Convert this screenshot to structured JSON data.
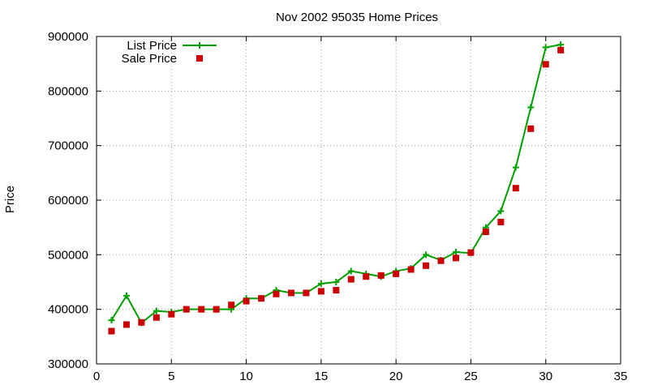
{
  "chart_data": {
    "type": "scatter",
    "title": "Nov 2002 95035 Home Prices",
    "xlabel": "",
    "ylabel": "Price",
    "xlim": [
      0,
      35
    ],
    "ylim": [
      300000,
      900000
    ],
    "xticks": [
      0,
      5,
      10,
      15,
      20,
      25,
      30,
      35
    ],
    "yticks": [
      300000,
      400000,
      500000,
      600000,
      700000,
      800000,
      900000
    ],
    "grid": true,
    "legend_position": "top-left",
    "series": [
      {
        "name": "List Price",
        "style": "line-with-plus-markers",
        "color": "#00a000",
        "x": [
          1,
          2,
          3,
          4,
          5,
          6,
          7,
          8,
          9,
          10,
          11,
          12,
          13,
          14,
          15,
          16,
          17,
          18,
          19,
          20,
          21,
          22,
          23,
          24,
          25,
          26,
          27,
          28,
          29,
          30,
          31
        ],
        "y": [
          380000,
          425000,
          375000,
          397000,
          395000,
          400000,
          400000,
          400000,
          400000,
          420000,
          420000,
          435000,
          430000,
          430000,
          447000,
          450000,
          470000,
          465000,
          460000,
          470000,
          475000,
          500000,
          490000,
          505000,
          503000,
          550000,
          580000,
          660000,
          770000,
          880000,
          885000
        ]
      },
      {
        "name": "Sale Price",
        "style": "square-markers",
        "color": "#cc0000",
        "x": [
          1,
          2,
          3,
          4,
          5,
          6,
          7,
          8,
          9,
          10,
          11,
          12,
          13,
          14,
          15,
          16,
          17,
          18,
          19,
          20,
          21,
          22,
          23,
          24,
          25,
          26,
          27,
          28,
          29,
          30,
          31
        ],
        "y": [
          360000,
          372000,
          376000,
          385000,
          391000,
          400000,
          400000,
          400000,
          408000,
          415000,
          420000,
          428000,
          430000,
          430000,
          433000,
          435000,
          455000,
          460000,
          462000,
          465000,
          473000,
          480000,
          489000,
          494000,
          504000,
          542000,
          560000,
          622000,
          731000,
          849000,
          875000
        ]
      }
    ]
  }
}
